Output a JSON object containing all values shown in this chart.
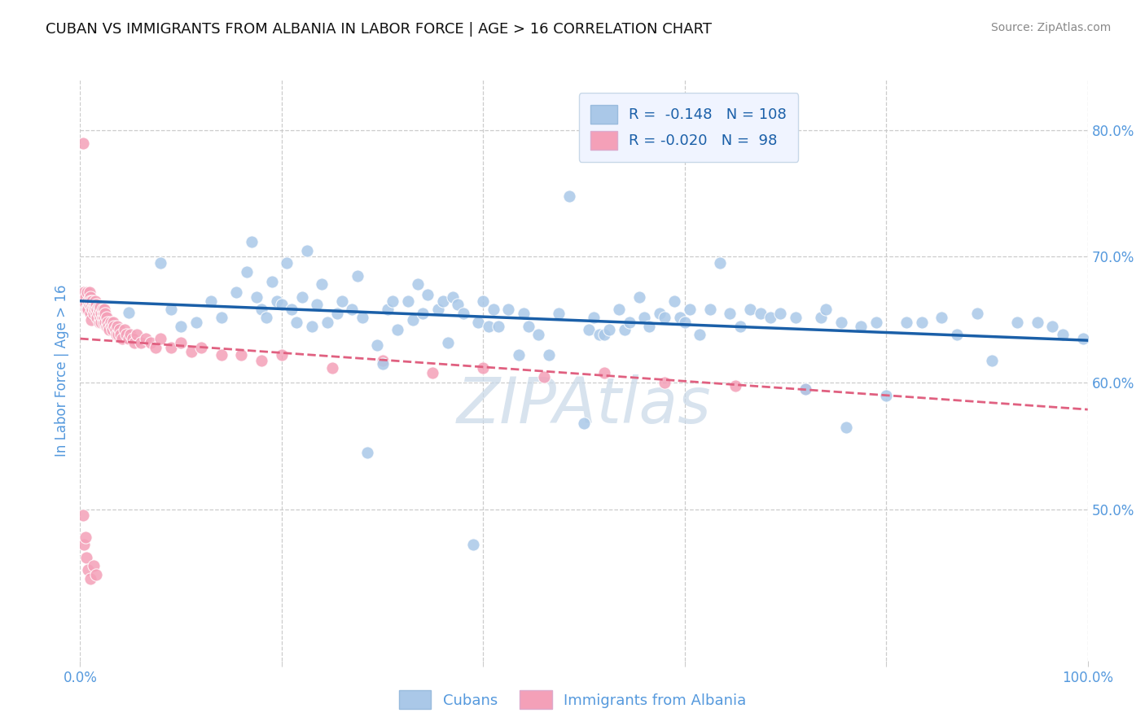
{
  "title": "CUBAN VS IMMIGRANTS FROM ALBANIA IN LABOR FORCE | AGE > 16 CORRELATION CHART",
  "source": "Source: ZipAtlas.com",
  "ylabel": "In Labor Force | Age > 16",
  "x_min": 0.0,
  "x_max": 1.0,
  "y_min": 0.38,
  "y_max": 0.84,
  "x_tick_vals": [
    0.0,
    0.2,
    0.4,
    0.6,
    0.8,
    1.0
  ],
  "x_tick_labels": [
    "0.0%",
    "",
    "",
    "",
    "",
    "100.0%"
  ],
  "y_tick_values": [
    0.5,
    0.6,
    0.7,
    0.8
  ],
  "y_tick_labels": [
    "50.0%",
    "60.0%",
    "70.0%",
    "80.0%"
  ],
  "cubans_R": "-0.148",
  "cubans_N": "108",
  "albania_R": "-0.020",
  "albania_N": "98",
  "blue_color": "#aac8e8",
  "pink_color": "#f4a0b8",
  "blue_line_color": "#1a5fa8",
  "pink_line_color": "#e06080",
  "legend_box_color": "#f0f4ff",
  "legend_border_color": "#c8d8e8",
  "title_color": "#111111",
  "source_color": "#888888",
  "axis_label_color": "#5599dd",
  "tick_color": "#5599dd",
  "grid_color": "#cccccc",
  "watermark_color": "#c8d8e8",
  "cubans_x": [
    0.048,
    0.08,
    0.09,
    0.1,
    0.115,
    0.13,
    0.14,
    0.155,
    0.165,
    0.17,
    0.175,
    0.18,
    0.185,
    0.19,
    0.195,
    0.2,
    0.205,
    0.21,
    0.215,
    0.22,
    0.225,
    0.23,
    0.235,
    0.24,
    0.245,
    0.255,
    0.26,
    0.27,
    0.275,
    0.28,
    0.285,
    0.295,
    0.3,
    0.305,
    0.31,
    0.315,
    0.325,
    0.33,
    0.335,
    0.34,
    0.345,
    0.355,
    0.36,
    0.365,
    0.37,
    0.375,
    0.38,
    0.39,
    0.395,
    0.4,
    0.405,
    0.41,
    0.415,
    0.425,
    0.435,
    0.44,
    0.445,
    0.455,
    0.465,
    0.475,
    0.485,
    0.5,
    0.505,
    0.51,
    0.515,
    0.52,
    0.525,
    0.535,
    0.54,
    0.545,
    0.555,
    0.56,
    0.565,
    0.575,
    0.58,
    0.59,
    0.595,
    0.6,
    0.605,
    0.615,
    0.625,
    0.635,
    0.645,
    0.655,
    0.665,
    0.675,
    0.685,
    0.695,
    0.71,
    0.72,
    0.735,
    0.74,
    0.755,
    0.76,
    0.775,
    0.79,
    0.8,
    0.82,
    0.835,
    0.855,
    0.87,
    0.89,
    0.905,
    0.93,
    0.95,
    0.965,
    0.975,
    0.995
  ],
  "cubans_y": [
    0.656,
    0.695,
    0.658,
    0.645,
    0.648,
    0.665,
    0.652,
    0.672,
    0.688,
    0.712,
    0.668,
    0.658,
    0.652,
    0.68,
    0.665,
    0.662,
    0.695,
    0.658,
    0.648,
    0.668,
    0.705,
    0.645,
    0.662,
    0.678,
    0.648,
    0.655,
    0.665,
    0.658,
    0.685,
    0.652,
    0.545,
    0.63,
    0.615,
    0.658,
    0.665,
    0.642,
    0.665,
    0.65,
    0.678,
    0.655,
    0.67,
    0.658,
    0.665,
    0.632,
    0.668,
    0.662,
    0.655,
    0.472,
    0.648,
    0.665,
    0.645,
    0.658,
    0.645,
    0.658,
    0.622,
    0.655,
    0.645,
    0.638,
    0.622,
    0.655,
    0.748,
    0.568,
    0.642,
    0.652,
    0.638,
    0.638,
    0.642,
    0.658,
    0.642,
    0.648,
    0.668,
    0.652,
    0.645,
    0.655,
    0.652,
    0.665,
    0.652,
    0.648,
    0.658,
    0.638,
    0.658,
    0.695,
    0.655,
    0.645,
    0.658,
    0.655,
    0.652,
    0.655,
    0.652,
    0.595,
    0.652,
    0.658,
    0.648,
    0.565,
    0.645,
    0.648,
    0.59,
    0.648,
    0.648,
    0.652,
    0.638,
    0.655,
    0.618,
    0.648,
    0.648,
    0.645,
    0.638,
    0.635
  ],
  "albania_x": [
    0.003,
    0.004,
    0.005,
    0.005,
    0.006,
    0.007,
    0.007,
    0.008,
    0.008,
    0.009,
    0.009,
    0.01,
    0.01,
    0.01,
    0.011,
    0.011,
    0.012,
    0.012,
    0.013,
    0.013,
    0.014,
    0.014,
    0.015,
    0.015,
    0.016,
    0.016,
    0.017,
    0.017,
    0.018,
    0.018,
    0.019,
    0.019,
    0.02,
    0.02,
    0.021,
    0.021,
    0.022,
    0.022,
    0.023,
    0.023,
    0.024,
    0.024,
    0.025,
    0.025,
    0.026,
    0.026,
    0.027,
    0.028,
    0.029,
    0.03,
    0.031,
    0.032,
    0.033,
    0.034,
    0.035,
    0.036,
    0.037,
    0.038,
    0.039,
    0.04,
    0.042,
    0.044,
    0.046,
    0.048,
    0.05,
    0.052,
    0.054,
    0.056,
    0.06,
    0.065,
    0.07,
    0.075,
    0.08,
    0.09,
    0.1,
    0.11,
    0.12,
    0.14,
    0.16,
    0.18,
    0.2,
    0.25,
    0.3,
    0.35,
    0.4,
    0.46,
    0.52,
    0.58,
    0.65,
    0.72,
    0.003,
    0.004,
    0.005,
    0.006,
    0.008,
    0.01,
    0.013,
    0.016
  ],
  "albania_y": [
    0.79,
    0.672,
    0.668,
    0.662,
    0.658,
    0.672,
    0.658,
    0.665,
    0.658,
    0.662,
    0.672,
    0.668,
    0.655,
    0.665,
    0.66,
    0.65,
    0.658,
    0.665,
    0.66,
    0.655,
    0.662,
    0.658,
    0.665,
    0.66,
    0.655,
    0.662,
    0.658,
    0.652,
    0.66,
    0.655,
    0.648,
    0.658,
    0.652,
    0.66,
    0.655,
    0.648,
    0.658,
    0.652,
    0.655,
    0.648,
    0.652,
    0.658,
    0.648,
    0.655,
    0.652,
    0.645,
    0.648,
    0.645,
    0.642,
    0.648,
    0.645,
    0.642,
    0.648,
    0.645,
    0.642,
    0.638,
    0.645,
    0.638,
    0.642,
    0.638,
    0.635,
    0.642,
    0.638,
    0.635,
    0.638,
    0.635,
    0.632,
    0.638,
    0.632,
    0.635,
    0.632,
    0.628,
    0.635,
    0.628,
    0.632,
    0.625,
    0.628,
    0.622,
    0.622,
    0.618,
    0.622,
    0.612,
    0.618,
    0.608,
    0.612,
    0.605,
    0.608,
    0.6,
    0.598,
    0.595,
    0.495,
    0.472,
    0.478,
    0.462,
    0.452,
    0.445,
    0.455,
    0.448
  ]
}
